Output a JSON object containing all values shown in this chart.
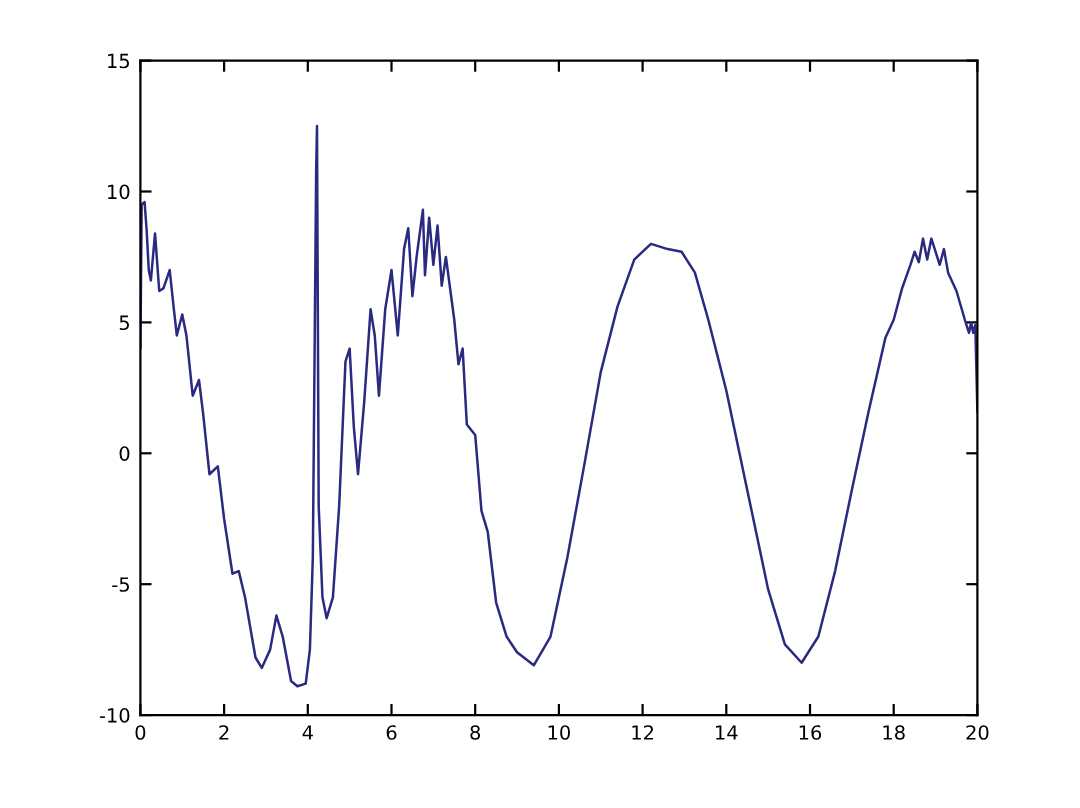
{
  "chart_data": {
    "type": "line",
    "xlim": [
      0,
      20
    ],
    "ylim": [
      -10,
      15
    ],
    "xticks": [
      0,
      2,
      4,
      6,
      8,
      10,
      12,
      14,
      16,
      18,
      20
    ],
    "yticks": [
      -10,
      -5,
      0,
      5,
      10,
      15
    ],
    "grid": false,
    "legend": false,
    "marker": "none",
    "line_style": "solid",
    "series": [
      {
        "color": "#2a2a80",
        "x": [
          0,
          0.03,
          0.1,
          0.15,
          0.2,
          0.25,
          0.35,
          0.45,
          0.55,
          0.7,
          0.8,
          0.87,
          1.0,
          1.1,
          1.25,
          1.4,
          1.5,
          1.65,
          1.85,
          2.0,
          2.2,
          2.35,
          2.5,
          2.75,
          2.9,
          3.1,
          3.25,
          3.4,
          3.6,
          3.75,
          3.95,
          4.05,
          4.12,
          4.2,
          4.22,
          4.26,
          4.35,
          4.45,
          4.6,
          4.75,
          4.9,
          5.0,
          5.1,
          5.2,
          5.35,
          5.5,
          5.6,
          5.7,
          5.85,
          6.0,
          6.15,
          6.3,
          6.4,
          6.5,
          6.6,
          6.75,
          6.8,
          6.9,
          7.0,
          7.1,
          7.2,
          7.3,
          7.5,
          7.6,
          7.7,
          7.8,
          8.0,
          8.15,
          8.3,
          8.5,
          8.75,
          9.0,
          9.4,
          9.8,
          10.2,
          10.6,
          11.0,
          11.4,
          11.8,
          12.2,
          12.6,
          12.93,
          13.25,
          13.57,
          14.0,
          14.5,
          15.0,
          15.4,
          15.8,
          16.2,
          16.6,
          17.0,
          17.4,
          17.8,
          18.0,
          18.2,
          18.4,
          18.5,
          18.6,
          18.7,
          18.8,
          18.9,
          19.0,
          19.1,
          19.2,
          19.3,
          19.5,
          19.7,
          19.8,
          19.85,
          19.9,
          19.95,
          20.0
        ],
        "values": [
          4,
          9.5,
          9.6,
          8.5,
          7.0,
          6.6,
          8.4,
          6.2,
          6.3,
          7.0,
          5.5,
          4.5,
          5.3,
          4.5,
          2.2,
          2.8,
          1.5,
          -0.8,
          -0.5,
          -2.5,
          -4.6,
          -4.5,
          -5.5,
          -7.8,
          -8.2,
          -7.5,
          -6.2,
          -7.0,
          -8.7,
          -8.9,
          -8.8,
          -7.5,
          -4,
          10.8,
          12.5,
          -2,
          -5.5,
          -6.3,
          -5.5,
          -2,
          3.5,
          4.0,
          1.0,
          -0.8,
          2.0,
          5.5,
          4.5,
          2.2,
          5.5,
          7.0,
          4.5,
          7.8,
          8.6,
          6.0,
          7.5,
          9.3,
          6.8,
          9.0,
          7.2,
          8.7,
          6.4,
          7.5,
          5.1,
          3.4,
          4.0,
          1.1,
          0.7,
          -2.2,
          -3.0,
          -5.7,
          -7.0,
          -7.6,
          -8.1,
          -7.0,
          -4.0,
          -0.5,
          3.1,
          5.6,
          7.4,
          8.0,
          7.8,
          7.7,
          6.9,
          5.1,
          2.4,
          -1.4,
          -5.2,
          -7.3,
          -8.0,
          -7.0,
          -4.5,
          -1.4,
          1.6,
          4.4,
          5.1,
          6.3,
          7.2,
          7.7,
          7.3,
          8.2,
          7.4,
          8.2,
          7.7,
          7.2,
          7.8,
          6.9,
          6.2,
          5.1,
          4.6,
          5.0,
          4.6,
          4.9,
          1.6
        ]
      }
    ]
  }
}
